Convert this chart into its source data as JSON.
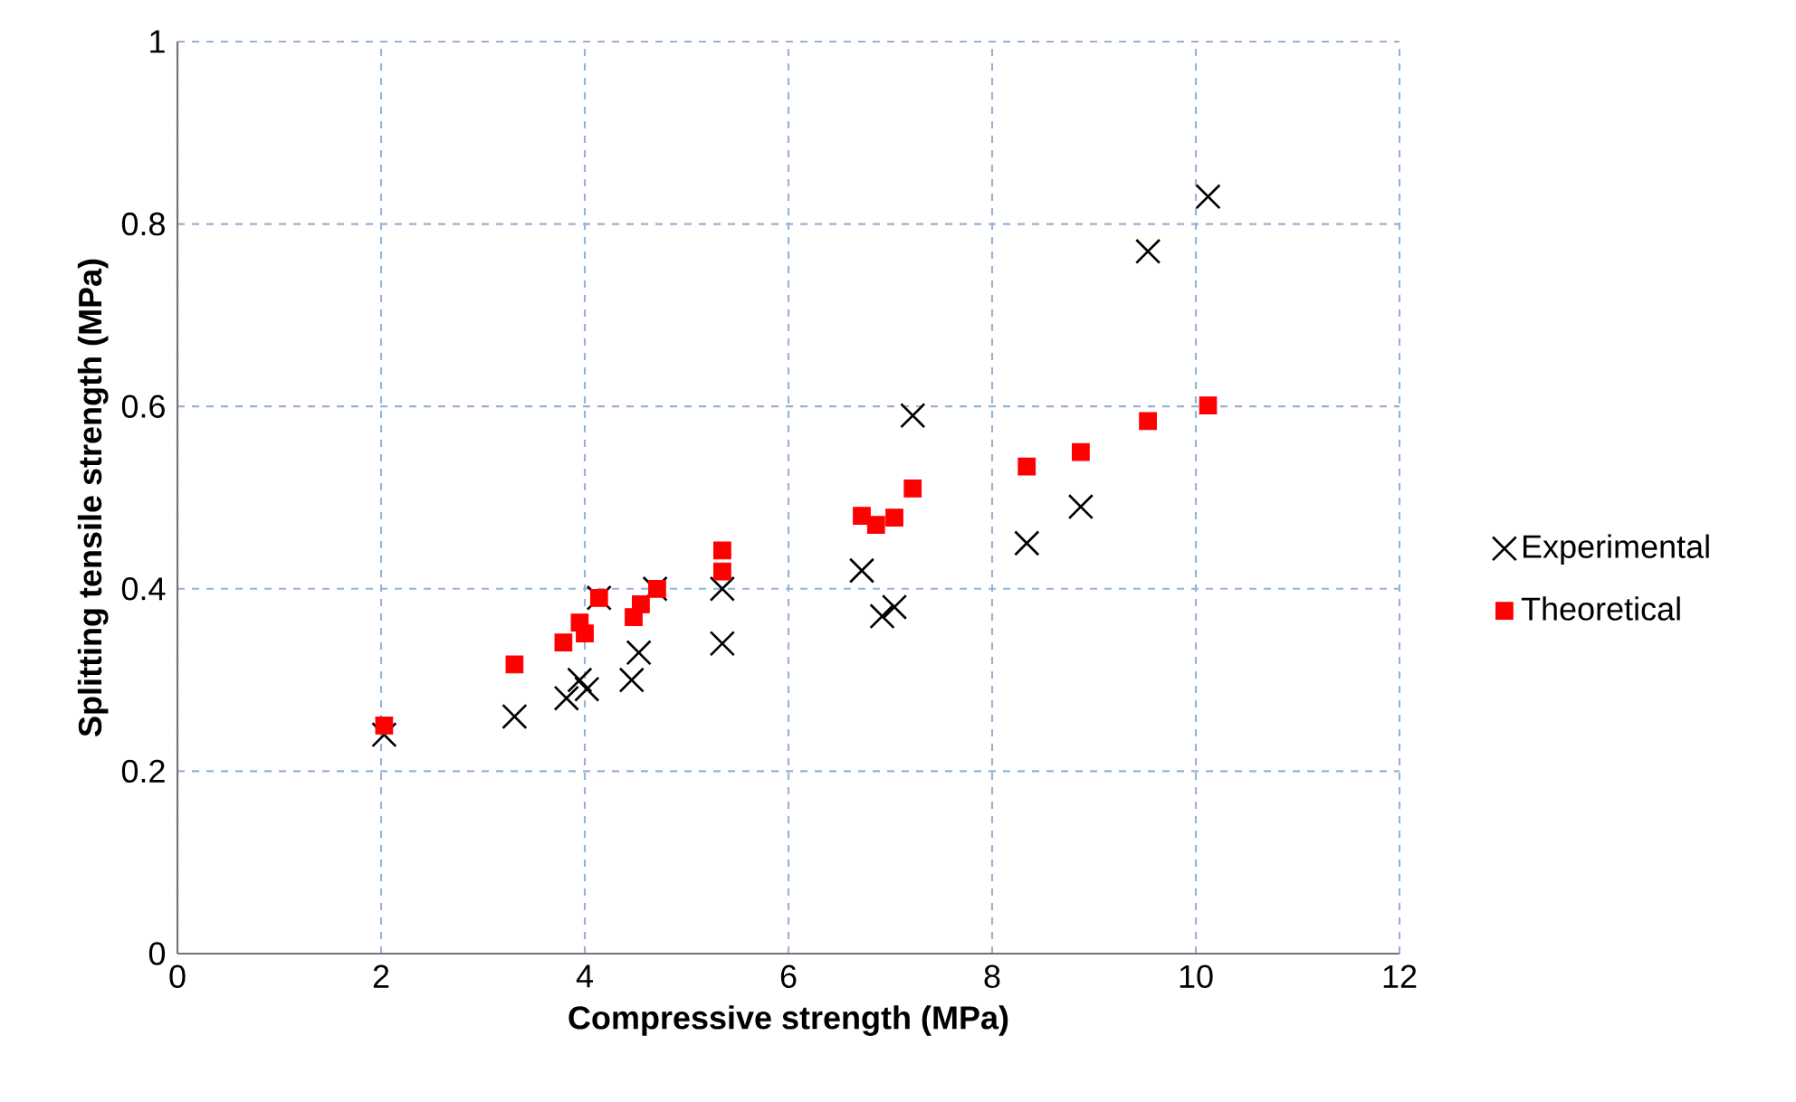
{
  "chart_data": {
    "type": "scatter",
    "xlabel": "Compressive strength (MPa)",
    "ylabel": "Splitting tensile strength (MPa)",
    "xlim": [
      0,
      12
    ],
    "ylim": [
      0,
      1
    ],
    "xticks": [
      0,
      2,
      4,
      6,
      8,
      10,
      12
    ],
    "yticks": [
      0,
      0.2,
      0.4,
      0.6,
      0.8,
      1
    ],
    "grid": true,
    "legend": "right",
    "series": [
      {
        "name": "Experimental",
        "color": "#000000",
        "marker": "cross",
        "x": [
          2.03,
          3.31,
          3.82,
          3.95,
          4.02,
          4.14,
          4.46,
          4.53,
          4.69,
          5.35,
          5.35,
          6.72,
          6.92,
          7.04,
          7.22,
          8.34,
          8.87,
          9.53,
          10.12
        ],
        "values": [
          0.24,
          0.26,
          0.28,
          0.3,
          0.29,
          0.39,
          0.3,
          0.33,
          0.4,
          0.34,
          0.4,
          0.42,
          0.37,
          0.38,
          0.59,
          0.45,
          0.49,
          0.77,
          0.83
        ]
      },
      {
        "name": "Theoretical",
        "color": "#ff0000",
        "marker": "square",
        "x": [
          2.03,
          3.31,
          3.79,
          3.95,
          4.0,
          4.14,
          4.48,
          4.55,
          4.71,
          5.35,
          5.35,
          6.72,
          6.86,
          7.04,
          7.22,
          8.34,
          8.87,
          9.53,
          10.12
        ],
        "values": [
          0.25,
          0.317,
          0.341,
          0.363,
          0.351,
          0.39,
          0.369,
          0.383,
          0.4,
          0.442,
          0.419,
          0.48,
          0.47,
          0.478,
          0.51,
          0.534,
          0.55,
          0.584,
          0.601
        ]
      }
    ]
  }
}
